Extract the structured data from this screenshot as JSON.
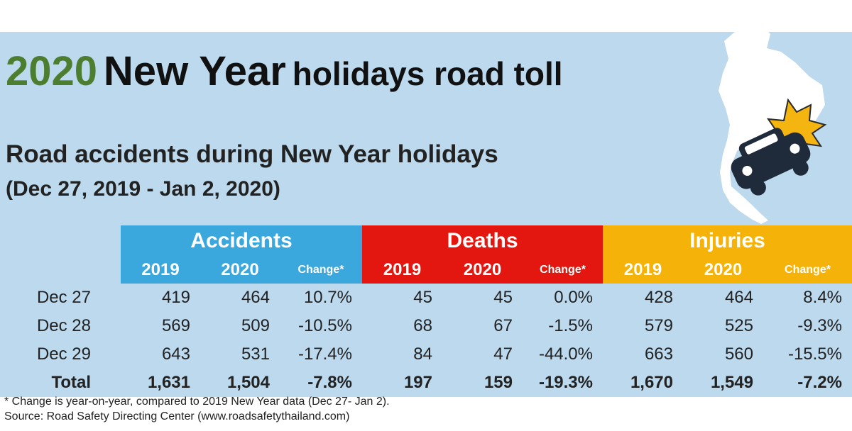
{
  "title": {
    "year": "2020",
    "main": "New Year",
    "rest": "holidays road toll"
  },
  "subtitle": "Road accidents during New Year holidays",
  "date_range": "(Dec 27, 2019 - Jan 2, 2020)",
  "colors": {
    "accidents": "#3aa7dd",
    "deaths": "#e3170f",
    "injuries": "#f5b30a",
    "panel": "#bcd9ee",
    "year_text": "#4d7d2e"
  },
  "chart_data": {
    "type": "table",
    "categories": [
      "Accidents",
      "Deaths",
      "Injuries"
    ],
    "columns": [
      "2019",
      "2020",
      "Change*"
    ],
    "rows": [
      {
        "label": "Dec 27",
        "accidents": [
          "419",
          "464",
          "10.7%"
        ],
        "deaths": [
          "45",
          "45",
          "0.0%"
        ],
        "injuries": [
          "428",
          "464",
          "8.4%"
        ]
      },
      {
        "label": "Dec 28",
        "accidents": [
          "569",
          "509",
          "-10.5%"
        ],
        "deaths": [
          "68",
          "67",
          "-1.5%"
        ],
        "injuries": [
          "579",
          "525",
          "-9.3%"
        ]
      },
      {
        "label": "Dec 29",
        "accidents": [
          "643",
          "531",
          "-17.4%"
        ],
        "deaths": [
          "84",
          "47",
          "-44.0%"
        ],
        "injuries": [
          "663",
          "560",
          "-15.5%"
        ]
      }
    ],
    "total": {
      "label": "Total",
      "accidents": [
        "1,631",
        "1,504",
        "-7.8%"
      ],
      "deaths": [
        "197",
        "159",
        "-19.3%"
      ],
      "injuries": [
        "1,670",
        "1,549",
        "-7.2%"
      ]
    }
  },
  "footnote": "* Change is year-on-year, compared to 2019 New Year data (Dec 27- Jan 2).",
  "source": "Source: Road Safety Directing Center (www.roadsafetythailand.com)"
}
